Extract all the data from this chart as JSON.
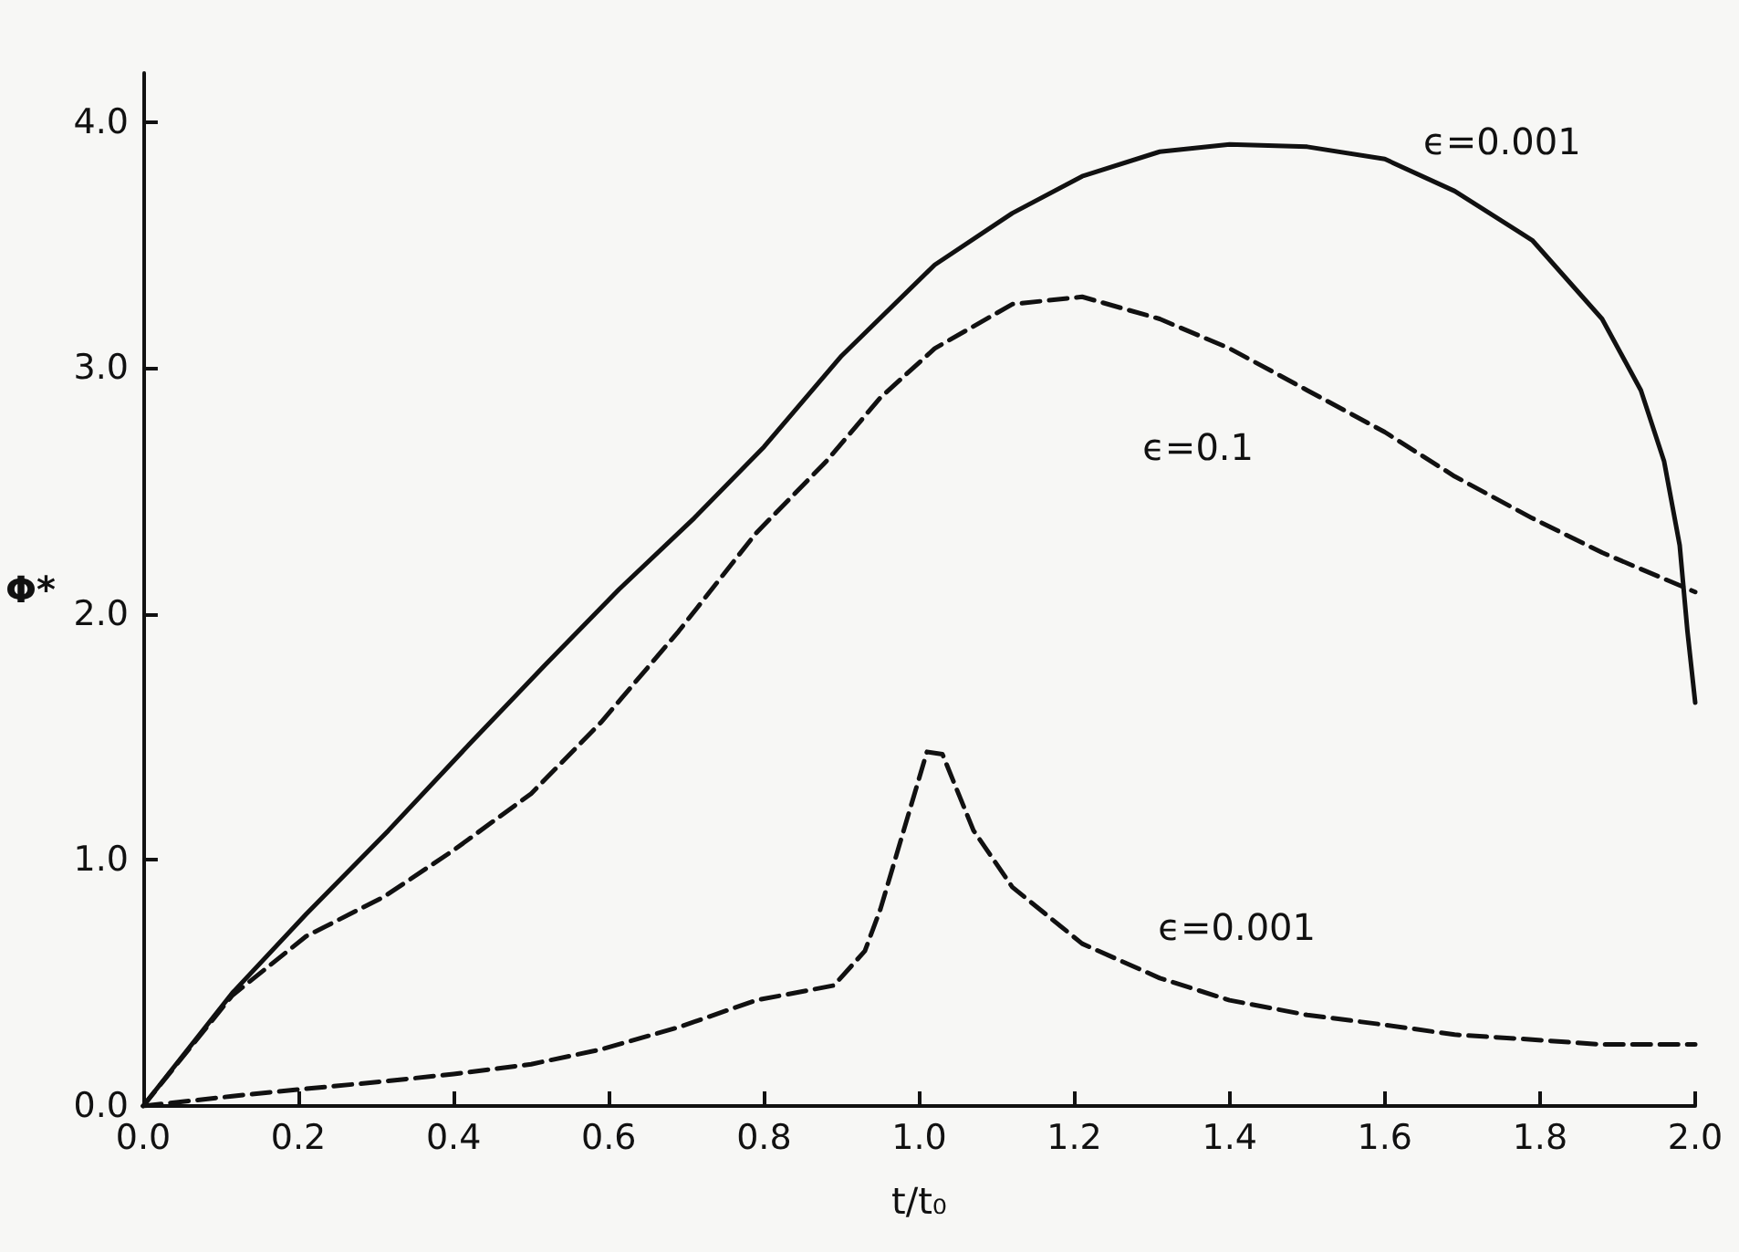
{
  "chart_data": {
    "type": "line",
    "xlabel": "t/t₀",
    "ylabel": "Φ*",
    "xlim": [
      0,
      2
    ],
    "ylim": [
      0,
      4.2
    ],
    "xticks": [
      {
        "value": 0,
        "label": "0.0"
      },
      {
        "value": 0.2,
        "label": "0.2"
      },
      {
        "value": 0.4,
        "label": "0.4"
      },
      {
        "value": 0.6,
        "label": "0.6"
      },
      {
        "value": 0.8,
        "label": "0.8"
      },
      {
        "value": 1,
        "label": "1.0"
      },
      {
        "value": 1.2,
        "label": "1.2"
      },
      {
        "value": 1.4,
        "label": "1.4"
      },
      {
        "value": 1.6,
        "label": "1.6"
      },
      {
        "value": 1.8,
        "label": "1.8"
      },
      {
        "value": 2,
        "label": "2.0"
      }
    ],
    "yticks": [
      {
        "value": 0,
        "label": "0.0"
      },
      {
        "value": 1,
        "label": "1.0"
      },
      {
        "value": 2,
        "label": "2.0"
      },
      {
        "value": 3,
        "label": "3.0"
      },
      {
        "value": 4,
        "label": "4.0"
      }
    ],
    "grid": false,
    "marker": "none",
    "series": [
      {
        "name": "ϵ=0.001",
        "color": "#111111",
        "line_style": "solid",
        "x": [
          0,
          0.115,
          0.21,
          0.316,
          0.42,
          0.517,
          0.613,
          0.71,
          0.8,
          0.9,
          1.02,
          1.12,
          1.21,
          1.31,
          1.4,
          1.5,
          1.6,
          1.69,
          1.79,
          1.88,
          1.93,
          1.96,
          1.98,
          1.99,
          2.0
        ],
        "values": [
          0,
          0.46,
          0.78,
          1.12,
          1.47,
          1.79,
          2.1,
          2.39,
          2.68,
          3.05,
          3.42,
          3.63,
          3.78,
          3.88,
          3.91,
          3.9,
          3.85,
          3.72,
          3.52,
          3.2,
          2.91,
          2.62,
          2.28,
          1.93,
          1.64
        ]
      },
      {
        "name": "ϵ=0.1",
        "color": "#111111",
        "line_style": "dashed",
        "x": [
          0,
          0.115,
          0.21,
          0.31,
          0.4,
          0.5,
          0.59,
          0.69,
          0.79,
          0.88,
          0.95,
          1.02,
          1.12,
          1.21,
          1.31,
          1.4,
          1.5,
          1.6,
          1.69,
          1.79,
          1.88,
          2.0
        ],
        "values": [
          0,
          0.45,
          0.69,
          0.85,
          1.04,
          1.27,
          1.56,
          1.93,
          2.33,
          2.62,
          2.88,
          3.08,
          3.26,
          3.29,
          3.2,
          3.08,
          2.91,
          2.74,
          2.56,
          2.39,
          2.25,
          2.09
        ]
      },
      {
        "name": "ϵ=0.001",
        "color": "#111111",
        "line_style": "dashed",
        "x": [
          0,
          0.115,
          0.21,
          0.31,
          0.4,
          0.5,
          0.59,
          0.69,
          0.79,
          0.89,
          0.93,
          0.95,
          0.98,
          1.01,
          1.03,
          1.07,
          1.12,
          1.21,
          1.31,
          1.4,
          1.5,
          1.6,
          1.69,
          1.79,
          1.88,
          2.0
        ],
        "values": [
          0,
          0.04,
          0.07,
          0.1,
          0.13,
          0.17,
          0.23,
          0.32,
          0.43,
          0.49,
          0.63,
          0.8,
          1.12,
          1.44,
          1.43,
          1.12,
          0.89,
          0.66,
          0.52,
          0.43,
          0.37,
          0.33,
          0.29,
          0.27,
          0.25,
          0.25
        ]
      }
    ]
  }
}
